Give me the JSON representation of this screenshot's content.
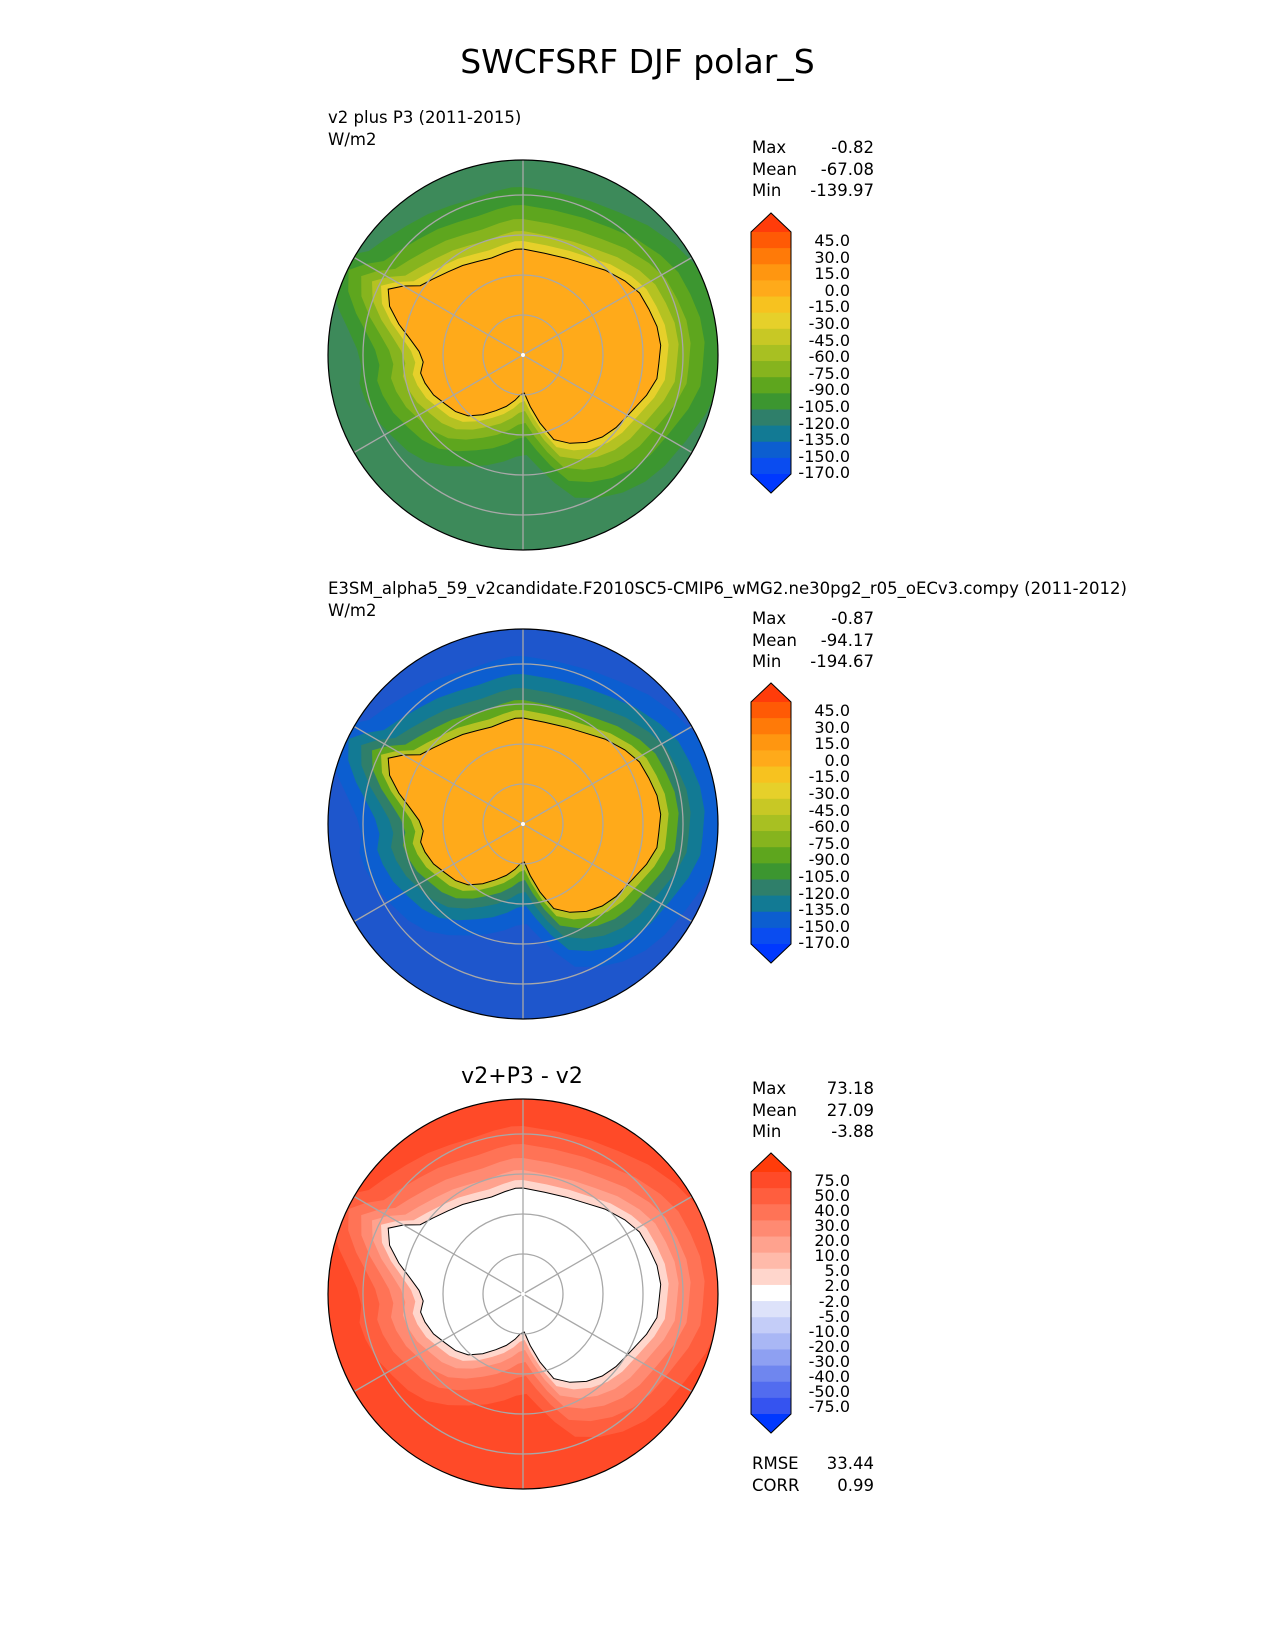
{
  "title": "SWCFSRF DJF polar_S",
  "panels": [
    {
      "id": "test",
      "title_line1": "v2 plus P3 (2011-2015)",
      "units": "W/m2",
      "stats": {
        "max_label": "Max",
        "max": "-0.82",
        "mean_label": "Mean",
        "mean": "-67.08",
        "min_label": "Min",
        "min": "-139.97"
      },
      "colorbar": {
        "levels": [
          "45.0",
          "30.0",
          "15.0",
          "0.0",
          "-15.0",
          "-30.0",
          "-45.0",
          "-60.0",
          "-75.0",
          "-90.0",
          "-105.0",
          "-120.0",
          "-135.0",
          "-150.0",
          "-170.0"
        ],
        "colors": [
          "#ff3c0a",
          "#ff5a05",
          "#ff7a08",
          "#ff9610",
          "#ffaa1a",
          "#f7c21f",
          "#e6d02a",
          "#c8c825",
          "#a8c022",
          "#86b41e",
          "#5ea61e",
          "#3c9630",
          "#2f7f6a",
          "#127a94",
          "#0c5ed0",
          "#0a4cf0",
          "#0038ff"
        ]
      },
      "map": {
        "ocean_ramp": [
          "#3d8a5a",
          "#3c9630",
          "#5ea61e",
          "#86b41e",
          "#b4c222",
          "#e6d02a"
        ],
        "land_color": "#ffaa1a",
        "projection": "South Polar Stereographic"
      }
    },
    {
      "id": "reference",
      "title_line1": "E3SM_alpha5_59_v2candidate.F2010SC5-CMIP6_wMG2.ne30pg2_r05_oECv3.compy (2011-2012)",
      "units": "W/m2",
      "stats": {
        "max_label": "Max",
        "max": "-0.87",
        "mean_label": "Mean",
        "mean": "-94.17",
        "min_label": "Min",
        "min": "-194.67"
      },
      "colorbar": {
        "levels": [
          "45.0",
          "30.0",
          "15.0",
          "0.0",
          "-15.0",
          "-30.0",
          "-45.0",
          "-60.0",
          "-75.0",
          "-90.0",
          "-105.0",
          "-120.0",
          "-135.0",
          "-150.0",
          "-170.0"
        ],
        "colors": [
          "#ff3c0a",
          "#ff5a05",
          "#ff7a08",
          "#ff9610",
          "#ffaa1a",
          "#f7c21f",
          "#e6d02a",
          "#c8c825",
          "#a8c022",
          "#86b41e",
          "#5ea61e",
          "#3c9630",
          "#2f7f6a",
          "#127a94",
          "#0c5ed0",
          "#0a4cf0",
          "#0038ff"
        ]
      },
      "map": {
        "ocean_ramp": [
          "#1e56cc",
          "#0c5ed0",
          "#127a94",
          "#2f7f6a",
          "#5ea61e",
          "#b4c222"
        ],
        "land_color": "#ffaa1a",
        "projection": "South Polar Stereographic"
      }
    },
    {
      "id": "diff",
      "title_line1": "v2+P3 - v2",
      "units": "",
      "stats": {
        "max_label": "Max",
        "max": "73.18",
        "mean_label": "Mean",
        "mean": "27.09",
        "min_label": "Min",
        "min": "-3.88"
      },
      "colorbar": {
        "levels": [
          "75.0",
          "50.0",
          "40.0",
          "30.0",
          "20.0",
          "10.0",
          "5.0",
          "2.0",
          "-2.0",
          "-5.0",
          "-10.0",
          "-20.0",
          "-30.0",
          "-40.0",
          "-50.0",
          "-75.0"
        ],
        "colors": [
          "#ff3c0a",
          "#ff4a28",
          "#ff5e3e",
          "#ff7356",
          "#ff8a72",
          "#ffa28e",
          "#ffbaaa",
          "#ffd6cc",
          "#ffffff",
          "#dde2fa",
          "#c4cdf8",
          "#a9b7f5",
          "#8ea0f2",
          "#6f86ef",
          "#526cef",
          "#3553f0",
          "#0038ff"
        ]
      },
      "map": {
        "ocean_ramp": [
          "#ff4a28",
          "#ff5e3e",
          "#ff7356",
          "#ff8a72",
          "#ffa28e",
          "#ffd6cc"
        ],
        "land_color": "#ffffff",
        "projection": "South Polar Stereographic"
      },
      "extra_stats": {
        "rmse_label": "RMSE",
        "rmse": "33.44",
        "corr_label": "CORR",
        "corr": "0.99"
      }
    }
  ]
}
